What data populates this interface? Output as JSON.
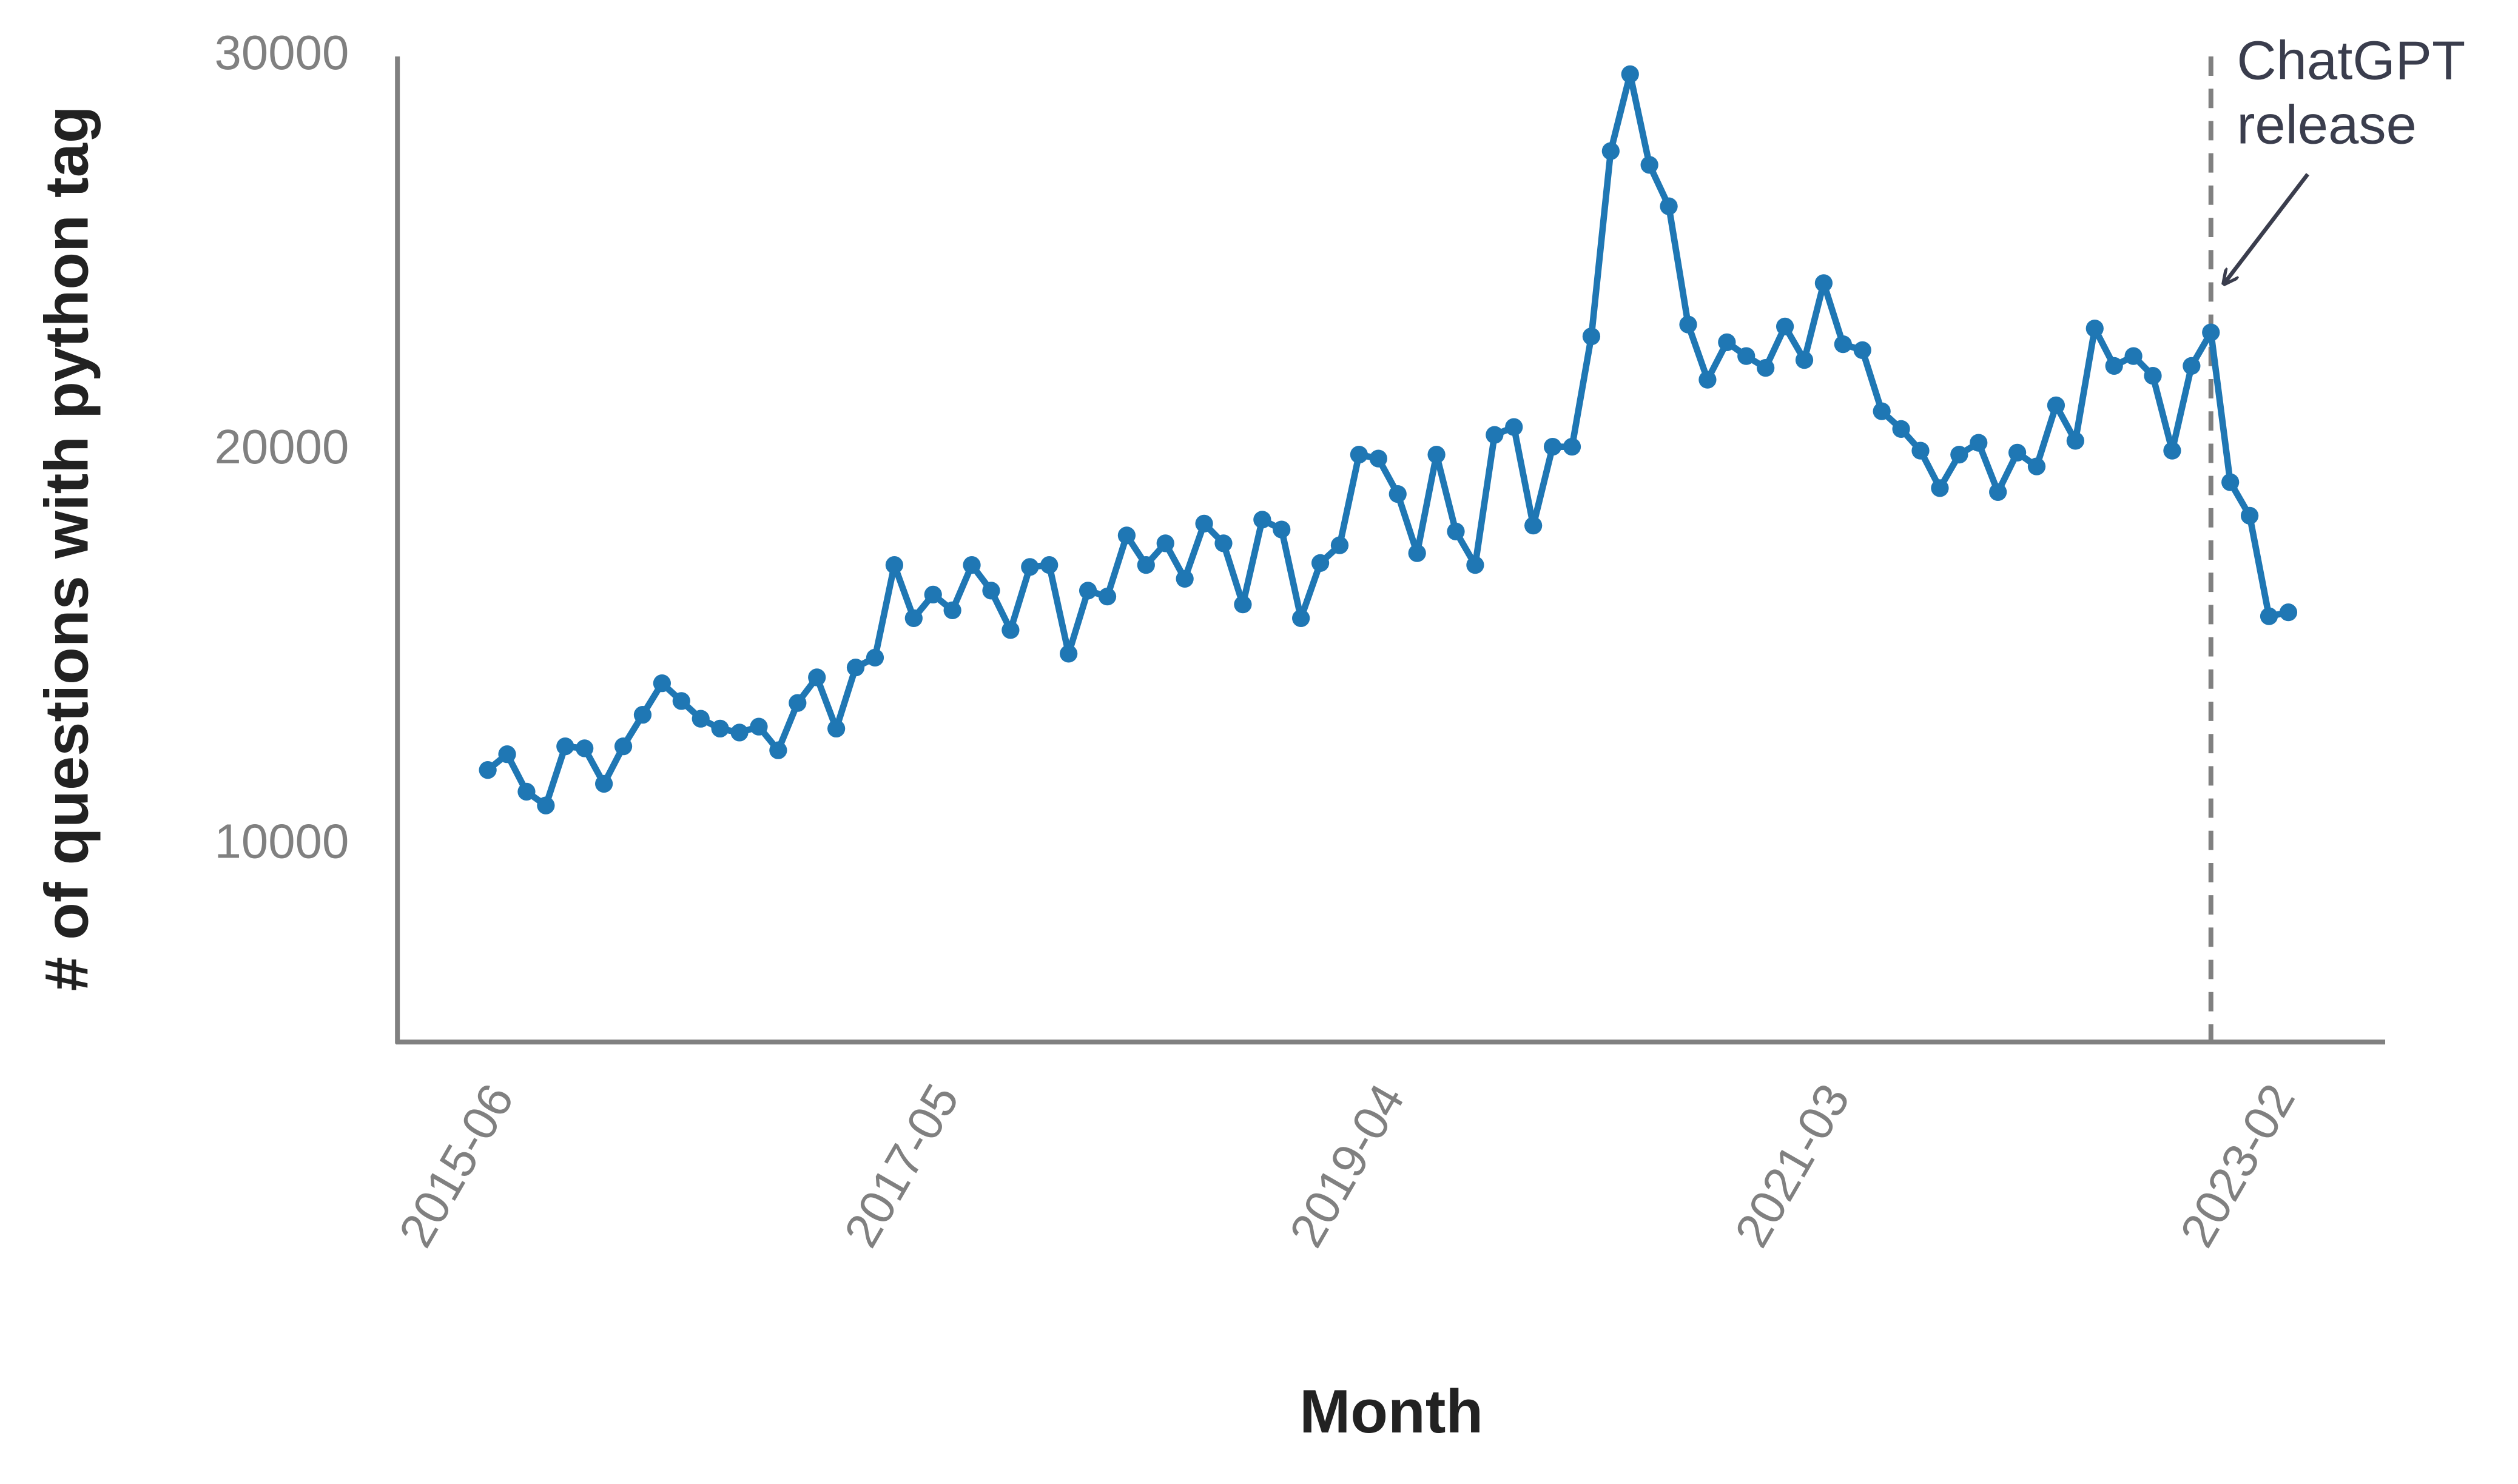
{
  "chart_data": {
    "type": "line",
    "y_label": "# of questions with python tag",
    "x_label": "Month",
    "categories": [
      "2015-06",
      null,
      null,
      null,
      null,
      null,
      null,
      null,
      null,
      null,
      null,
      null,
      null,
      null,
      null,
      null,
      null,
      null,
      null,
      null,
      null,
      null,
      null,
      "2017-05",
      null,
      null,
      null,
      null,
      null,
      null,
      null,
      null,
      null,
      null,
      null,
      null,
      null,
      null,
      null,
      null,
      null,
      null,
      null,
      null,
      null,
      null,
      "2019-04",
      null,
      null,
      null,
      null,
      null,
      null,
      null,
      null,
      null,
      null,
      null,
      null,
      null,
      null,
      null,
      null,
      null,
      null,
      null,
      null,
      null,
      null,
      "2021-03",
      null,
      null,
      null,
      null,
      null,
      null,
      null,
      null,
      null,
      null,
      null,
      null,
      null,
      null,
      null,
      null,
      null,
      null,
      null,
      null,
      null,
      null,
      "2023-02",
      null
    ],
    "series": [
      {
        "color": "#1f77b4",
        "values": [
          11900,
          12300,
          11350,
          11000,
          12500,
          12450,
          11550,
          12500,
          13300,
          14100,
          13650,
          13200,
          12950,
          12850,
          13000,
          12400,
          13600,
          14250,
          12950,
          14500,
          14750,
          17100,
          15750,
          16350,
          15950,
          17100,
          16450,
          15450,
          17050,
          17100,
          14850,
          16450,
          16300,
          17850,
          17100,
          17650,
          16750,
          18150,
          17650,
          16100,
          18250,
          18000,
          15750,
          17150,
          17600,
          19900,
          19800,
          18900,
          17400,
          19900,
          17950,
          17100,
          20400,
          20600,
          18100,
          20100,
          20100,
          22900,
          27600,
          29550,
          27250,
          26200,
          23200,
          21800,
          22750,
          22400,
          22100,
          23150,
          22300,
          24250,
          22700,
          22550,
          21000,
          20550,
          20000,
          19050,
          19900,
          20200,
          18950,
          19950,
          19600,
          21150,
          20250,
          23100,
          22150,
          22400,
          21900,
          20000,
          22150,
          23000,
          19200,
          18350,
          15800,
          15900
        ]
      }
    ],
    "ylim": [
      5000,
      30000
    ],
    "yticks": [
      10000,
      20000,
      30000
    ],
    "grid": false,
    "annotation": {
      "lines": [
        "ChatGPT",
        "release"
      ],
      "category_index": 89
    }
  }
}
